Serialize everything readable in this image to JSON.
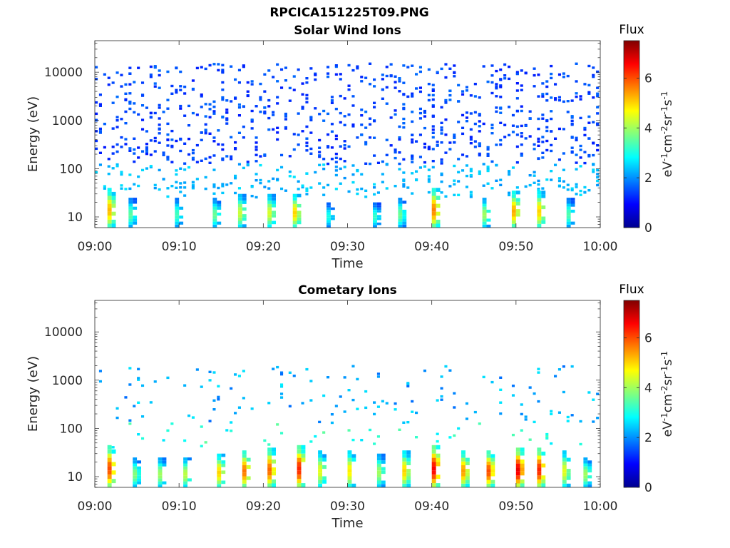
{
  "figure": {
    "title": "RPCICA151225T09.PNG"
  },
  "colors": {
    "axis": "#262626",
    "background": "#ffffff",
    "colormap": "jet"
  },
  "chart_data": [
    {
      "type": "heatmap",
      "title": "Solar Wind Ions",
      "xlabel": "Time",
      "ylabel": "Energy (eV)",
      "xlim": [
        "09:00",
        "10:00"
      ],
      "x_ticks": [
        "09:00",
        "09:10",
        "09:20",
        "09:30",
        "09:40",
        "09:50",
        "10:00"
      ],
      "ylim": [
        6,
        45000
      ],
      "y_scale": "log",
      "y_ticks": [
        10,
        100,
        1000,
        10000
      ],
      "y_tick_labels": [
        "10",
        "100",
        "1000",
        "10000"
      ],
      "colorbar": {
        "label": "Flux",
        "units": "eV-1cm-2sr-1s-1",
        "range": [
          0,
          7.5
        ],
        "ticks": [
          0,
          2,
          4,
          6
        ],
        "colormap": "jet"
      },
      "time_cells_minutes": 0.5,
      "background_energy_range_eV": [
        25,
        15000
      ],
      "background_typical_flux": 1.3,
      "background_cells_per_minute": 18,
      "low_energy_bursts": [
        {
          "t": 1.5,
          "e_low": 8,
          "e_high": 40,
          "peak": 5.2
        },
        {
          "t": 4.0,
          "e_low": 8,
          "e_high": 25,
          "peak": 3.5
        },
        {
          "t": 9.5,
          "e_low": 8,
          "e_high": 25,
          "peak": 3.3
        },
        {
          "t": 14.0,
          "e_low": 8,
          "e_high": 25,
          "peak": 3.6
        },
        {
          "t": 17.0,
          "e_low": 8,
          "e_high": 30,
          "peak": 4.3
        },
        {
          "t": 20.5,
          "e_low": 8,
          "e_high": 30,
          "peak": 4.4
        },
        {
          "t": 23.5,
          "e_low": 8,
          "e_high": 30,
          "peak": 5.0
        },
        {
          "t": 27.5,
          "e_low": 8,
          "e_high": 20,
          "peak": 3.0
        },
        {
          "t": 33.0,
          "e_low": 8,
          "e_high": 20,
          "peak": 3.2
        },
        {
          "t": 36.0,
          "e_low": 8,
          "e_high": 25,
          "peak": 3.6
        },
        {
          "t": 40.0,
          "e_low": 8,
          "e_high": 40,
          "peak": 5.6
        },
        {
          "t": 46.0,
          "e_low": 8,
          "e_high": 25,
          "peak": 4.0
        },
        {
          "t": 49.5,
          "e_low": 8,
          "e_high": 35,
          "peak": 5.3
        },
        {
          "t": 52.5,
          "e_low": 8,
          "e_high": 35,
          "peak": 5.0
        },
        {
          "t": 56.0,
          "e_low": 8,
          "e_high": 25,
          "peak": 3.4
        }
      ]
    },
    {
      "type": "heatmap",
      "title": "Cometary Ions",
      "xlabel": "Time",
      "ylabel": "Energy (eV)",
      "xlim": [
        "09:00",
        "10:00"
      ],
      "x_ticks": [
        "09:00",
        "09:10",
        "09:20",
        "09:30",
        "09:40",
        "09:50",
        "10:00"
      ],
      "ylim": [
        6,
        45000
      ],
      "y_scale": "log",
      "y_ticks": [
        10,
        100,
        1000,
        10000
      ],
      "y_tick_labels": [
        "10",
        "100",
        "1000",
        "10000"
      ],
      "colorbar": {
        "label": "Flux",
        "units": "eV-1cm-2sr-1s-1",
        "range": [
          0,
          7.5
        ],
        "ticks": [
          0,
          2,
          4,
          6
        ],
        "colormap": "jet"
      },
      "time_cells_minutes": 0.5,
      "background_energy_range_eV": [
        40,
        2000
      ],
      "background_typical_flux": 2.0,
      "background_cells_per_minute": 3,
      "low_energy_bursts": [
        {
          "t": 1.5,
          "e_low": 8,
          "e_high": 45,
          "peak": 6.0
        },
        {
          "t": 4.5,
          "e_low": 8,
          "e_high": 25,
          "peak": 3.8
        },
        {
          "t": 7.5,
          "e_low": 8,
          "e_high": 25,
          "peak": 4.0
        },
        {
          "t": 10.5,
          "e_low": 8,
          "e_high": 25,
          "peak": 4.2
        },
        {
          "t": 14.5,
          "e_low": 8,
          "e_high": 30,
          "peak": 5.0
        },
        {
          "t": 17.5,
          "e_low": 8,
          "e_high": 35,
          "peak": 5.7
        },
        {
          "t": 20.5,
          "e_low": 8,
          "e_high": 40,
          "peak": 5.8
        },
        {
          "t": 24.0,
          "e_low": 8,
          "e_high": 45,
          "peak": 6.3
        },
        {
          "t": 26.5,
          "e_low": 8,
          "e_high": 35,
          "peak": 4.5
        },
        {
          "t": 30.0,
          "e_low": 8,
          "e_high": 35,
          "peak": 4.8
        },
        {
          "t": 33.5,
          "e_low": 8,
          "e_high": 30,
          "peak": 4.0
        },
        {
          "t": 36.5,
          "e_low": 8,
          "e_high": 35,
          "peak": 5.0
        },
        {
          "t": 40.0,
          "e_low": 8,
          "e_high": 45,
          "peak": 6.6
        },
        {
          "t": 43.5,
          "e_low": 8,
          "e_high": 35,
          "peak": 5.4
        },
        {
          "t": 46.5,
          "e_low": 8,
          "e_high": 35,
          "peak": 6.0
        },
        {
          "t": 50.0,
          "e_low": 8,
          "e_high": 40,
          "peak": 6.7
        },
        {
          "t": 52.5,
          "e_low": 8,
          "e_high": 40,
          "peak": 6.3
        },
        {
          "t": 55.5,
          "e_low": 8,
          "e_high": 35,
          "peak": 4.5
        },
        {
          "t": 58.0,
          "e_low": 8,
          "e_high": 25,
          "peak": 4.0
        }
      ]
    }
  ]
}
